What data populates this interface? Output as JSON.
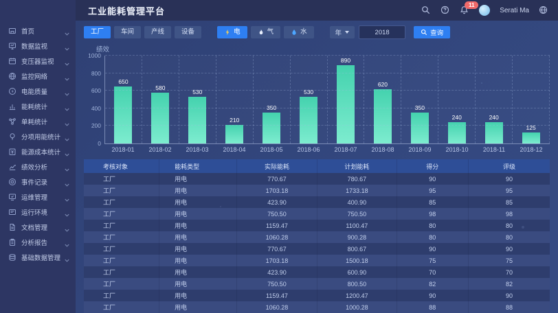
{
  "header": {
    "title": "工业能耗管理平台",
    "user_name": "Serati Ma",
    "notification_count": "11"
  },
  "sidebar": {
    "items": [
      {
        "label": "首页",
        "icon": "home-icon"
      },
      {
        "label": "数据监视",
        "icon": "monitor-icon"
      },
      {
        "label": "变压器监视",
        "icon": "transformer-icon"
      },
      {
        "label": "监控网络",
        "icon": "network-icon"
      },
      {
        "label": "电能质量",
        "icon": "power-quality-icon"
      },
      {
        "label": "能耗统计",
        "icon": "energy-stats-icon"
      },
      {
        "label": "单耗统计",
        "icon": "unit-consumption-icon"
      },
      {
        "label": "分项用能统计",
        "icon": "subitem-energy-icon"
      },
      {
        "label": "能源成本统计",
        "icon": "energy-cost-icon"
      },
      {
        "label": "绩效分析",
        "icon": "performance-icon"
      },
      {
        "label": "事件记录",
        "icon": "event-log-icon"
      },
      {
        "label": "运维管理",
        "icon": "ops-icon"
      },
      {
        "label": "运行环境",
        "icon": "environment-icon"
      },
      {
        "label": "文档管理",
        "icon": "document-icon"
      },
      {
        "label": "分析报告",
        "icon": "report-icon"
      },
      {
        "label": "基础数据管理",
        "icon": "base-data-icon"
      }
    ]
  },
  "filters": {
    "scope_buttons": [
      {
        "label": "工厂",
        "active": true
      },
      {
        "label": "车间",
        "active": false
      },
      {
        "label": "产线",
        "active": false
      },
      {
        "label": "设备",
        "active": false
      }
    ],
    "energy_buttons": [
      {
        "label": "电",
        "icon": "lightning-icon",
        "active": true
      },
      {
        "label": "气",
        "icon": "flame-icon",
        "active": false
      },
      {
        "label": "水",
        "icon": "water-drop-icon",
        "active": false
      }
    ],
    "period_select": "年",
    "year_value": "2018",
    "search_label": "查询"
  },
  "chart_data": {
    "type": "bar",
    "title": "",
    "ylabel": "绩效",
    "xlabel": "",
    "categories": [
      "2018-01",
      "2018-02",
      "2018-03",
      "2018-04",
      "2018-05",
      "2018-06",
      "2018-07",
      "2018-08",
      "2018-09",
      "2018-10",
      "2018-11",
      "2018-12"
    ],
    "values": [
      650,
      580,
      530,
      210,
      350,
      530,
      890,
      620,
      350,
      240,
      240,
      125
    ],
    "ylim": [
      0,
      1000
    ],
    "yticks": [
      0,
      200,
      400,
      600,
      800,
      1000
    ],
    "grid": "dashed",
    "legend_position": "none",
    "bar_color_top": "#44d2ae",
    "bar_color_bottom": "#7deccf"
  },
  "table": {
    "columns": [
      "考核对象",
      "能耗类型",
      "实际能耗",
      "计划能耗",
      "得分",
      "评级"
    ],
    "rows": [
      [
        "工厂",
        "用电",
        "770.67",
        "780.67",
        "90",
        "90"
      ],
      [
        "工厂",
        "用电",
        "1703.18",
        "1733.18",
        "95",
        "95"
      ],
      [
        "工厂",
        "用电",
        "423.90",
        "400.90",
        "85",
        "85"
      ],
      [
        "工厂",
        "用电",
        "750.50",
        "750.50",
        "98",
        "98"
      ],
      [
        "工厂",
        "用电",
        "1159.47",
        "1100.47",
        "80",
        "80"
      ],
      [
        "工厂",
        "用电",
        "1060.28",
        "900.28",
        "80",
        "80"
      ],
      [
        "工厂",
        "用电",
        "770.67",
        "800.67",
        "90",
        "90"
      ],
      [
        "工厂",
        "用电",
        "1703.18",
        "1500.18",
        "75",
        "75"
      ],
      [
        "工厂",
        "用电",
        "423.90",
        "600.90",
        "70",
        "70"
      ],
      [
        "工厂",
        "用电",
        "750.50",
        "800.50",
        "82",
        "82"
      ],
      [
        "工厂",
        "用电",
        "1159.47",
        "1200.47",
        "90",
        "90"
      ],
      [
        "工厂",
        "用电",
        "1060.28",
        "1000.28",
        "88",
        "88"
      ]
    ]
  },
  "colors": {
    "accent_blue": "#2e7ff2",
    "sidebar_bg": "#2d3663",
    "header_bg": "#293157",
    "content_bg": "#33477e",
    "table_header_bg": "#2e4e97",
    "notification_red": "#f06a6a",
    "lightning_yellow": "#ffd34d",
    "water_blue": "#4da6ff"
  }
}
